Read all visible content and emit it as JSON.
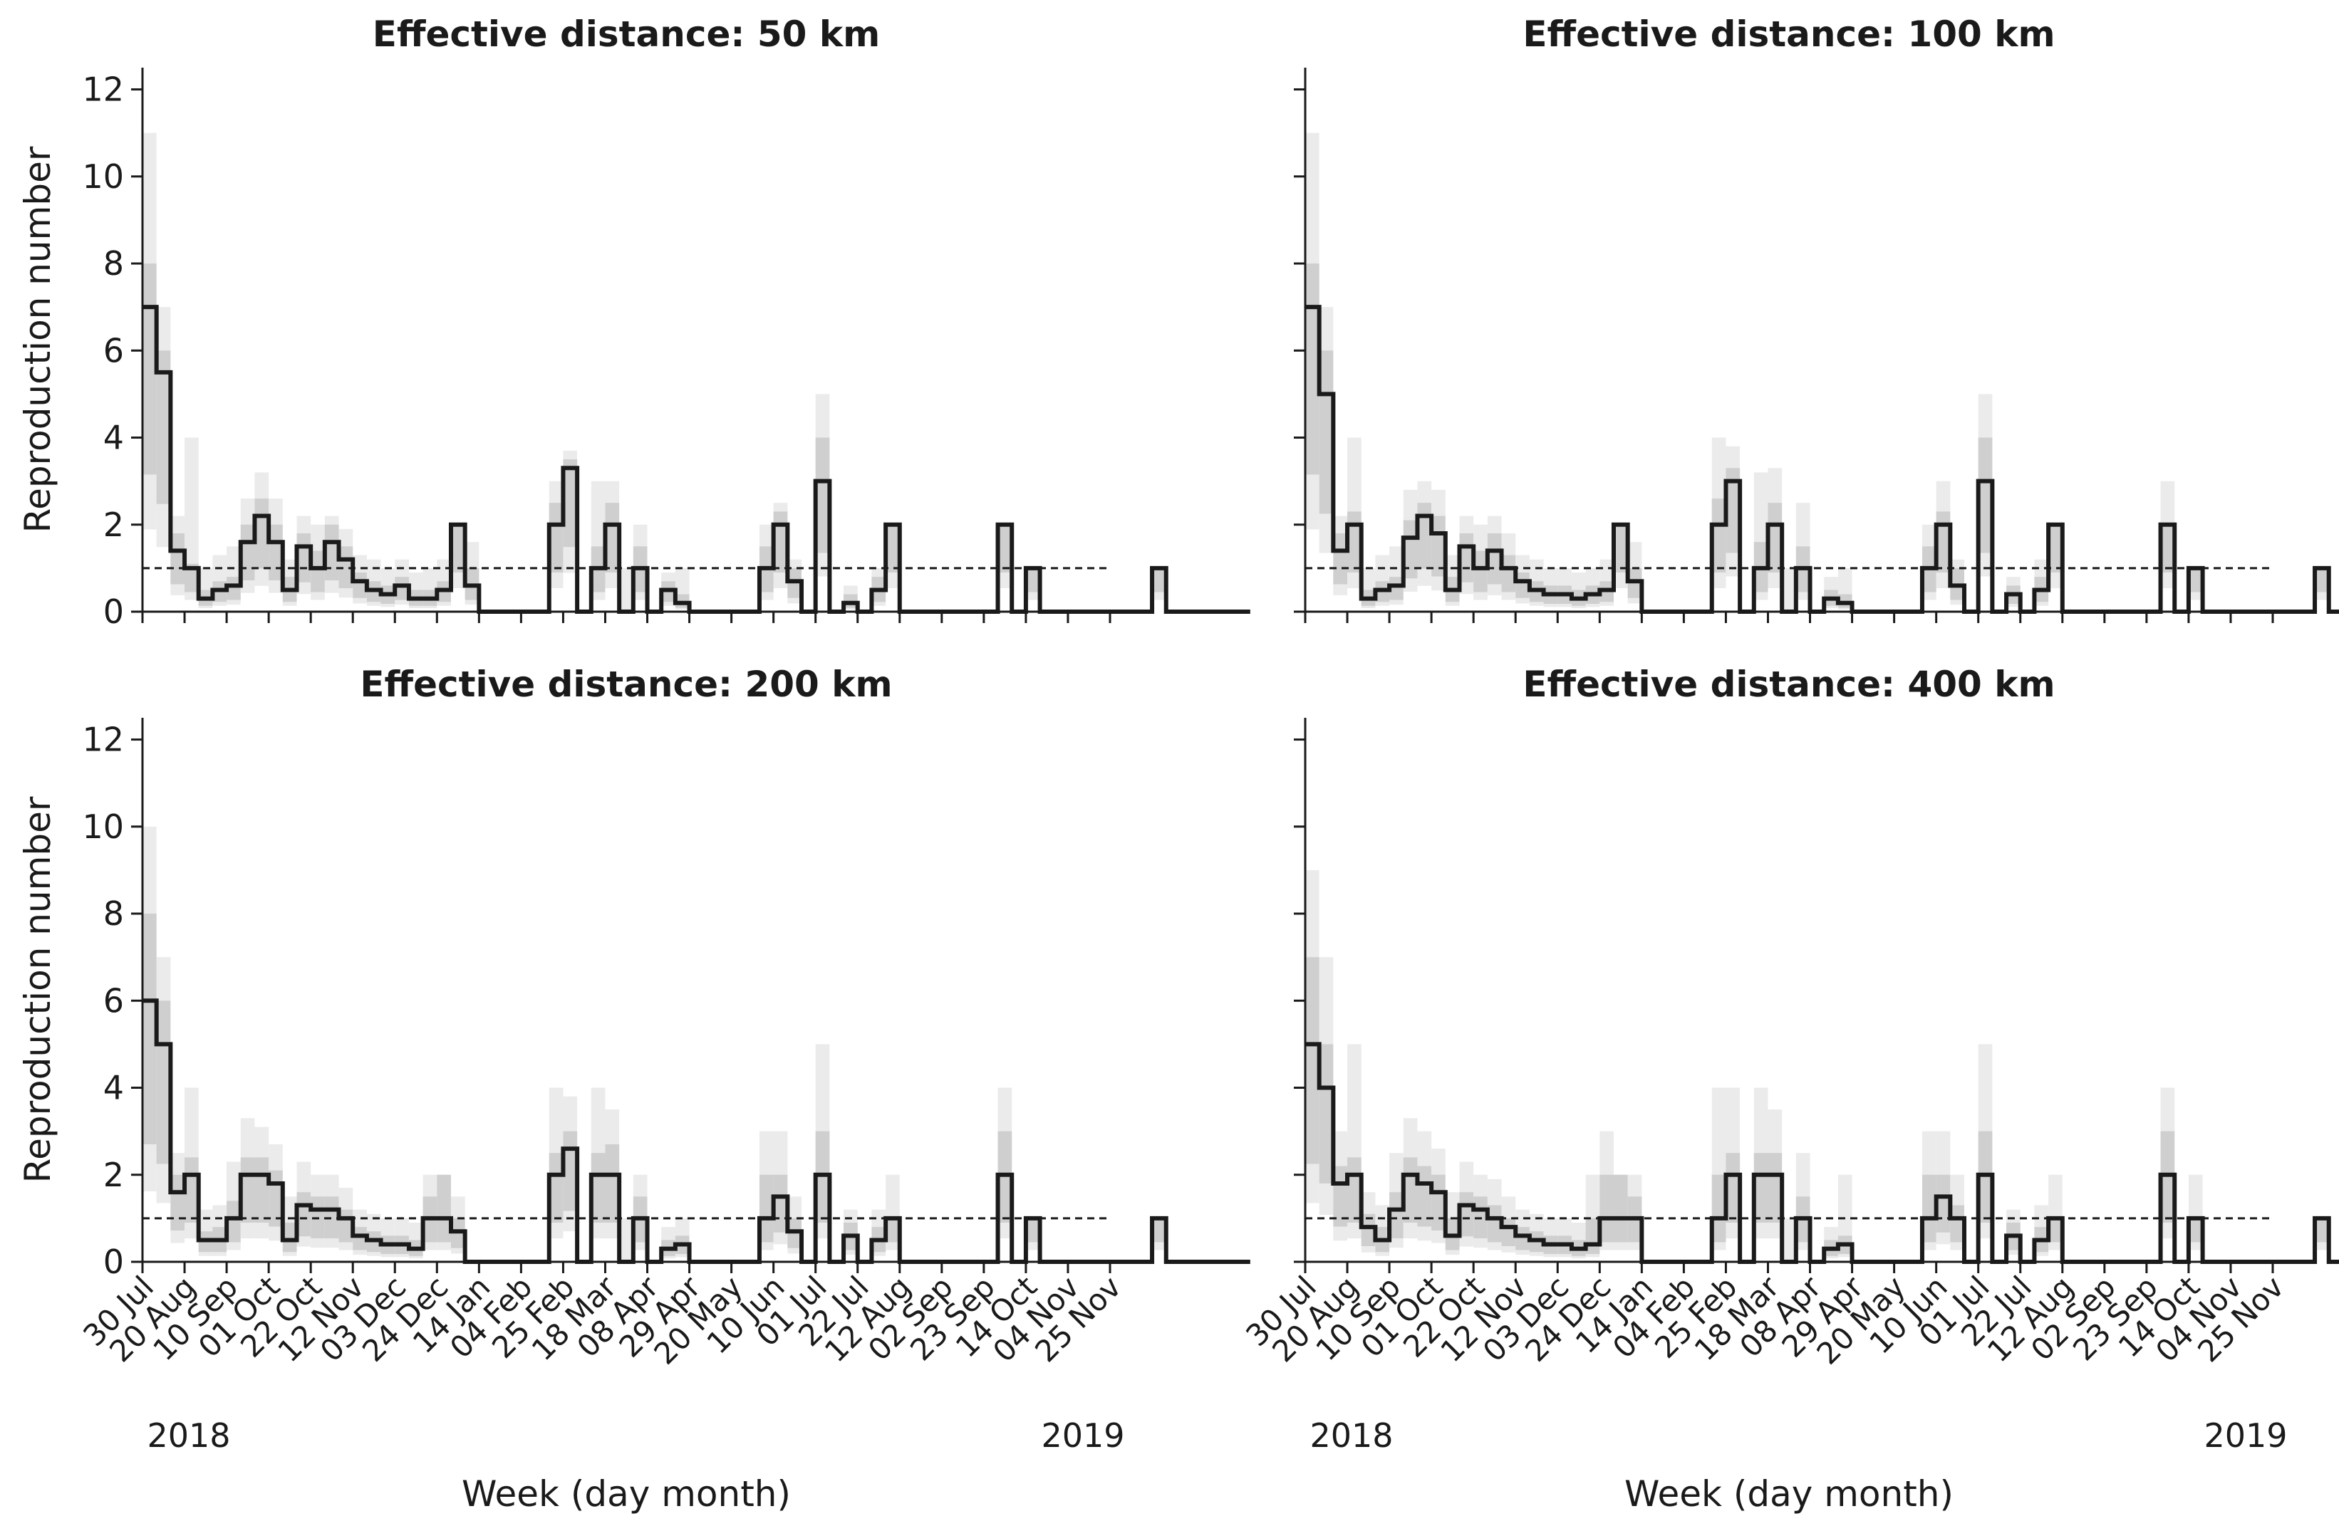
{
  "figure": {
    "ylabel": "Reproduction number",
    "xlabel": "Week (day month)",
    "year_labels": [
      "2018",
      "2019"
    ],
    "week_ticks": [
      "30 Jul",
      "20 Aug",
      "10 Sep",
      "01 Oct",
      "22 Oct",
      "12 Nov",
      "03 Dec",
      "24 Dec",
      "14 Jan",
      "04 Feb",
      "25 Feb",
      "18 Mar",
      "08 Apr",
      "29 Apr",
      "20 May",
      "10 Jun",
      "01 Jul",
      "22 Jul",
      "12 Aug",
      "02 Sep",
      "23 Sep",
      "14 Oct",
      "04 Nov",
      "25 Nov"
    ],
    "y_ticks": [
      "0",
      "2",
      "4",
      "6",
      "8",
      "10",
      "12"
    ],
    "threshold": 1
  },
  "chart_data": [
    {
      "type": "line",
      "title": "Effective distance: 50 km",
      "ylabel": "Reproduction number",
      "xlabel": "Week (day month)",
      "ylim": [
        0,
        12.5
      ],
      "x_unit": "week index from 30 Jul 2018",
      "values": [
        7,
        5.5,
        1.4,
        1,
        0.3,
        0.5,
        0.6,
        1.6,
        2.2,
        1.6,
        0.5,
        1.5,
        1.0,
        1.6,
        1.2,
        0.7,
        0.5,
        0.4,
        0.6,
        0.3,
        0.3,
        0.5,
        2,
        0.6,
        0,
        0,
        0,
        0,
        0,
        2,
        3.3,
        0,
        1,
        2,
        0,
        1,
        0,
        0.5,
        0.2,
        0,
        0,
        0,
        0,
        0,
        1,
        2,
        0.7,
        0,
        3,
        0,
        0.2,
        0,
        0.5,
        2,
        0,
        0,
        0,
        0,
        0,
        0,
        0,
        2,
        0,
        1,
        0,
        0,
        0,
        0,
        0,
        0,
        0,
        0,
        1,
        0,
        0,
        0,
        0,
        0,
        0
      ],
      "upper_50": [
        8,
        6,
        1.8,
        1.1,
        0.5,
        0.7,
        0.8,
        2.0,
        2.6,
        2.0,
        0.8,
        1.8,
        1.4,
        2.0,
        1.5,
        0.9,
        0.7,
        0.6,
        0.8,
        0.5,
        0.5,
        0.7,
        2.0,
        1.0,
        0,
        0,
        0,
        0,
        0,
        2.5,
        3.5,
        0,
        1.5,
        2.5,
        0,
        1.5,
        0,
        0.7,
        0.4,
        0,
        0,
        0,
        0,
        0,
        1.5,
        2.3,
        1.0,
        0,
        4.0,
        0,
        0.4,
        0,
        0.8,
        2.0,
        0,
        0,
        0,
        0,
        0,
        0,
        0,
        2.0,
        0,
        1.0,
        0,
        0,
        0,
        0,
        0,
        0,
        0,
        0,
        1.0,
        0,
        0,
        0,
        0,
        0,
        0
      ],
      "upper_95": [
        11,
        7,
        2.2,
        4.0,
        1.0,
        1.3,
        1.5,
        2.6,
        3.2,
        2.6,
        1.2,
        2.2,
        2.0,
        2.2,
        1.9,
        1.3,
        1.2,
        1.0,
        1.2,
        0.9,
        1.0,
        1.2,
        2.0,
        1.6,
        0,
        0,
        0,
        0,
        0,
        3.0,
        3.7,
        0,
        3.0,
        3.0,
        1.0,
        2.0,
        0,
        0.9,
        1.0,
        0,
        0,
        0,
        0,
        0,
        2.0,
        2.5,
        1.2,
        0,
        5.0,
        0,
        0.6,
        0,
        1.0,
        2.0,
        0,
        0,
        0,
        0,
        0,
        0,
        0,
        2.0,
        0,
        1.0,
        0,
        0,
        0,
        0,
        0,
        0,
        0,
        0,
        1.0,
        0,
        0,
        0,
        0,
        0,
        0
      ]
    },
    {
      "type": "line",
      "title": "Effective distance: 100 km",
      "ylabel": "",
      "xlabel": "Week (day month)",
      "ylim": [
        0,
        12.5
      ],
      "x_unit": "week index from 30 Jul 2018",
      "values": [
        7,
        5,
        1.4,
        2,
        0.3,
        0.5,
        0.6,
        1.7,
        2.2,
        1.8,
        0.5,
        1.5,
        1.0,
        1.4,
        1.0,
        0.7,
        0.5,
        0.4,
        0.4,
        0.3,
        0.4,
        0.5,
        2,
        0.7,
        0,
        0,
        0,
        0,
        0,
        2,
        3,
        0,
        1,
        2,
        0,
        1,
        0,
        0.3,
        0.2,
        0,
        0,
        0,
        0,
        0,
        1,
        2,
        0.6,
        0,
        3,
        0,
        0.4,
        0,
        0.5,
        2,
        0,
        0,
        0,
        0,
        0,
        0,
        0,
        2,
        0,
        1,
        0,
        0,
        0,
        0,
        0,
        0,
        0,
        0,
        1,
        0,
        0,
        0,
        0,
        0,
        0
      ],
      "upper_50": [
        8,
        6,
        1.8,
        2.3,
        0.5,
        0.7,
        0.8,
        2.1,
        2.5,
        2.2,
        0.8,
        1.8,
        1.4,
        1.8,
        1.3,
        0.9,
        0.7,
        0.6,
        0.6,
        0.5,
        0.6,
        0.7,
        2.0,
        1.0,
        0,
        0,
        0,
        0,
        0,
        2.6,
        3.3,
        0,
        1.6,
        2.5,
        0,
        1.5,
        0,
        0.5,
        0.4,
        0,
        0,
        0,
        0,
        0,
        1.5,
        2.3,
        1.0,
        0,
        4.0,
        0,
        0.6,
        0,
        0.8,
        2.0,
        0,
        0,
        0,
        0,
        0,
        0,
        0,
        2.0,
        0,
        1.0,
        0,
        0,
        0,
        0,
        0,
        0,
        0,
        0,
        1.0,
        0,
        0,
        0,
        0,
        0,
        0
      ],
      "upper_95": [
        11,
        7,
        2.2,
        4.0,
        1.0,
        1.3,
        1.5,
        2.8,
        3.0,
        2.8,
        1.3,
        2.2,
        2.0,
        2.2,
        1.8,
        1.3,
        1.2,
        1.0,
        1.0,
        0.9,
        1.0,
        1.2,
        2.0,
        1.6,
        0,
        0,
        0,
        0,
        0,
        4.0,
        3.8,
        0,
        3.2,
        3.3,
        1.0,
        2.5,
        0,
        0.8,
        1.0,
        0,
        0,
        0,
        0,
        0,
        2.0,
        3.0,
        1.2,
        0,
        5.0,
        0,
        0.8,
        0,
        1.2,
        2.0,
        0,
        0,
        0,
        0,
        0,
        0,
        0,
        3.0,
        0,
        1.0,
        0,
        0,
        0,
        0,
        0,
        0,
        0,
        0,
        1.0,
        0,
        0,
        0,
        0,
        0,
        0
      ]
    },
    {
      "type": "line",
      "title": "Effective distance: 200 km",
      "ylabel": "Reproduction number",
      "xlabel": "Week (day month)",
      "ylim": [
        0,
        12.5
      ],
      "x_unit": "week index from 30 Jul 2018",
      "values": [
        6,
        5,
        1.6,
        2,
        0.5,
        0.5,
        1.0,
        2.0,
        2.0,
        1.8,
        0.5,
        1.3,
        1.2,
        1.2,
        1.0,
        0.6,
        0.5,
        0.4,
        0.4,
        0.3,
        1.0,
        1.0,
        0.7,
        0,
        0,
        0,
        0,
        0,
        0,
        2,
        2.6,
        0,
        2,
        2,
        0,
        1,
        0,
        0.3,
        0.4,
        0,
        0,
        0,
        0,
        0,
        1,
        1.5,
        0.7,
        0,
        2,
        0,
        0.6,
        0,
        0.5,
        1,
        0,
        0,
        0,
        0,
        0,
        0,
        0,
        2,
        0,
        1,
        0,
        0,
        0,
        0,
        0,
        0,
        0,
        0,
        1,
        0,
        0,
        0,
        0,
        0,
        0
      ],
      "upper_50": [
        8,
        6,
        2.0,
        2.4,
        0.7,
        0.8,
        1.4,
        2.4,
        2.4,
        2.1,
        0.9,
        1.6,
        1.5,
        1.5,
        1.2,
        0.8,
        0.7,
        0.6,
        0.6,
        0.5,
        1.5,
        2.0,
        1.0,
        0,
        0,
        0,
        0,
        0,
        0,
        2.5,
        3.0,
        0,
        2.5,
        2.7,
        0,
        1.5,
        0,
        0.5,
        0.6,
        0,
        0,
        0,
        0,
        0,
        2.0,
        2.0,
        1.0,
        0,
        3.0,
        0,
        0.9,
        0,
        0.8,
        1.0,
        0,
        0,
        0,
        0,
        0,
        0,
        0,
        3.0,
        0,
        1.0,
        0,
        0,
        0,
        0,
        0,
        0,
        0,
        0,
        1.0,
        0,
        0,
        0,
        0,
        0,
        0
      ],
      "upper_95": [
        10,
        7,
        2.5,
        4.0,
        1.2,
        1.3,
        2.3,
        3.3,
        3.1,
        2.7,
        1.5,
        2.3,
        2.0,
        2.0,
        1.7,
        1.2,
        1.1,
        1.0,
        1.0,
        0.9,
        2.0,
        2.0,
        1.5,
        0,
        0,
        0,
        0,
        0,
        0,
        4.0,
        3.8,
        0,
        4.0,
        3.5,
        1.0,
        2.0,
        0,
        0.8,
        1.0,
        0,
        0,
        0,
        0,
        0,
        3.0,
        3.0,
        1.5,
        0,
        5.0,
        0,
        1.2,
        0,
        1.2,
        2.0,
        0,
        0,
        0,
        0,
        0,
        0,
        0,
        4.0,
        0,
        1.0,
        0,
        0,
        0,
        0,
        0,
        0,
        0,
        0,
        1.0,
        0,
        0,
        0,
        0,
        0,
        0
      ]
    },
    {
      "type": "line",
      "title": "Effective distance: 400 km",
      "ylabel": "",
      "xlabel": "Week (day month)",
      "ylim": [
        0,
        12.5
      ],
      "x_unit": "week index from 30 Jul 2018",
      "values": [
        5,
        4,
        1.8,
        2,
        0.8,
        0.5,
        1.2,
        2.0,
        1.8,
        1.6,
        0.6,
        1.3,
        1.2,
        1.0,
        0.8,
        0.6,
        0.5,
        0.4,
        0.4,
        0.3,
        0.4,
        1.0,
        1.0,
        1.0,
        0,
        0,
        0,
        0,
        0,
        1,
        2,
        0,
        2,
        2,
        0,
        1,
        0,
        0.3,
        0.4,
        0,
        0,
        0,
        0,
        0,
        1,
        1.5,
        1.0,
        0,
        2,
        0,
        0.6,
        0,
        0.5,
        1,
        0,
        0,
        0,
        0,
        0,
        0,
        0,
        2,
        0,
        1,
        0,
        0,
        0,
        0,
        0,
        0,
        0,
        0,
        1,
        0,
        0,
        0,
        0,
        0,
        0
      ],
      "upper_50": [
        7,
        5,
        2.2,
        2.4,
        1.1,
        0.8,
        1.6,
        2.4,
        2.2,
        2.0,
        1.0,
        1.6,
        1.5,
        1.3,
        1.0,
        0.8,
        0.7,
        0.6,
        0.6,
        0.5,
        1.0,
        2.0,
        2.0,
        1.5,
        0,
        0,
        0,
        0,
        0,
        2.0,
        2.5,
        0,
        2.5,
        2.5,
        0,
        1.5,
        0,
        0.5,
        0.6,
        0,
        0,
        0,
        0,
        0,
        2.0,
        2.0,
        1.3,
        0,
        3.0,
        0,
        0.9,
        0,
        0.8,
        1.0,
        0,
        0,
        0,
        0,
        0,
        0,
        0,
        3.0,
        0,
        1.0,
        0,
        0,
        0,
        0,
        0,
        0,
        0,
        0,
        1.0,
        0,
        0,
        0,
        0,
        0,
        0
      ],
      "upper_95": [
        9,
        7,
        3.0,
        5.0,
        1.6,
        1.3,
        2.5,
        3.3,
        3.0,
        2.6,
        1.6,
        2.3,
        2.0,
        1.9,
        1.5,
        1.2,
        1.1,
        1.0,
        1.0,
        0.9,
        2.0,
        3.0,
        2.0,
        2.0,
        0,
        0,
        0,
        0,
        0,
        4.0,
        4.0,
        0,
        4.0,
        3.5,
        1.0,
        2.5,
        0,
        0.8,
        2.0,
        0,
        0,
        0,
        0,
        0,
        3.0,
        3.0,
        2.0,
        0,
        5.0,
        0,
        1.2,
        0,
        1.3,
        2.0,
        0,
        0,
        0,
        0,
        0,
        0,
        0,
        4.0,
        0,
        2.0,
        0,
        0,
        0,
        0,
        0,
        0,
        0,
        0,
        1.0,
        0,
        0,
        0,
        0,
        0,
        0
      ]
    }
  ]
}
